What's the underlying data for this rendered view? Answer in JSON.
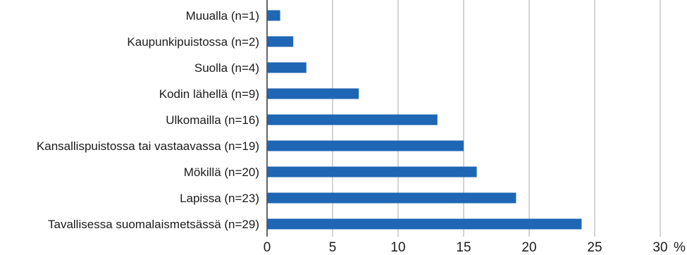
{
  "chart_data": {
    "type": "bar",
    "orientation": "horizontal",
    "categories": [
      "Muualla (n=1)",
      "Kaupunkipuistossa (n=2)",
      "Suolla (n=4)",
      "Kodin lähellä (n=9)",
      "Ulkomailla (n=16)",
      "Kansallispuistossa tai vastaavassa (n=19)",
      "Mökillä (n=20)",
      "Lapissa (n=23)",
      "Tavallisessa suomalaismetsässä (n=29)"
    ],
    "values": [
      1,
      2,
      3,
      7,
      13,
      15,
      16,
      19,
      24
    ],
    "xlim": [
      0,
      30
    ],
    "xticks": [
      "0",
      "5",
      "10",
      "15",
      "20",
      "25",
      "30"
    ],
    "unit": "%",
    "grid": true,
    "bar_color": "#1f66b4",
    "grid_color": "#aaaaaa"
  }
}
